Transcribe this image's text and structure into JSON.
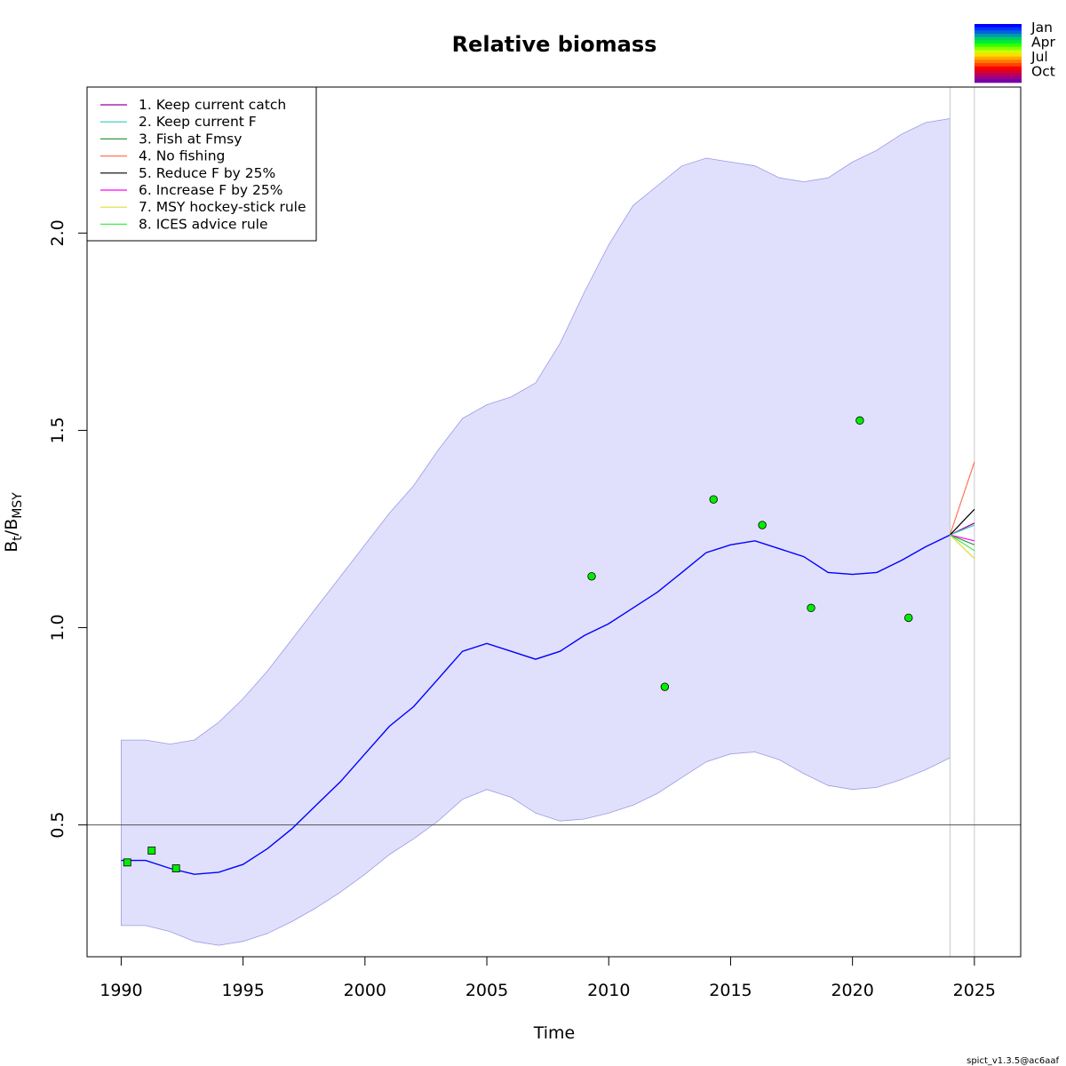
{
  "chart_data": {
    "type": "line",
    "title": "Relative biomass",
    "xlabel": "Time",
    "ylabel_main": "B",
    "ylabel_sub1": "t",
    "ylabel_sep": "/B",
    "ylabel_sub2": "MSY",
    "xlim": [
      1988.6,
      2026.9
    ],
    "ylim": [
      0.166,
      2.37
    ],
    "x_ticks": [
      1990,
      1995,
      2000,
      2005,
      2010,
      2015,
      2020,
      2025
    ],
    "y_ticks": [
      0.5,
      1.0,
      1.5,
      2.0
    ],
    "x_tick_labels": [
      "1990",
      "1995",
      "2000",
      "2005",
      "2010",
      "2015",
      "2020",
      "2025"
    ],
    "y_tick_labels": [
      "0.5",
      "1.0",
      "1.5",
      "2.0"
    ],
    "reference_line_y": 0.5,
    "forecast_lines_x": [
      2024.0,
      2025.0
    ],
    "estimate": {
      "color": "#0000ff",
      "x": [
        1990.0,
        1991.0,
        1992.0,
        1993.0,
        1994.0,
        1995.0,
        1996.0,
        1997.0,
        1998.0,
        1999.0,
        2000.0,
        2001.0,
        2002.0,
        2003.0,
        2004.0,
        2005.0,
        2006.0,
        2007.0,
        2008.0,
        2009.0,
        2010.0,
        2011.0,
        2012.0,
        2013.0,
        2014.0,
        2015.0,
        2016.0,
        2017.0,
        2018.0,
        2019.0,
        2020.0,
        2021.0,
        2022.0,
        2023.0,
        2024.0
      ],
      "y": [
        0.41,
        0.41,
        0.39,
        0.375,
        0.38,
        0.4,
        0.44,
        0.49,
        0.55,
        0.61,
        0.68,
        0.75,
        0.8,
        0.87,
        0.94,
        0.96,
        0.94,
        0.92,
        0.94,
        0.98,
        1.01,
        1.05,
        1.09,
        1.14,
        1.19,
        1.21,
        1.22,
        1.2,
        1.18,
        1.14,
        1.135,
        1.14,
        1.17,
        1.205,
        1.235
      ]
    },
    "ci_band": {
      "color": "#e0e0fc",
      "x": [
        1990.0,
        1991.0,
        1992.0,
        1993.0,
        1994.0,
        1995.0,
        1996.0,
        1997.0,
        1998.0,
        1999.0,
        2000.0,
        2001.0,
        2002.0,
        2003.0,
        2004.0,
        2005.0,
        2006.0,
        2007.0,
        2008.0,
        2009.0,
        2010.0,
        2011.0,
        2012.0,
        2013.0,
        2014.0,
        2015.0,
        2016.0,
        2017.0,
        2018.0,
        2019.0,
        2020.0,
        2021.0,
        2022.0,
        2023.0,
        2024.0
      ],
      "lower": [
        0.245,
        0.245,
        0.23,
        0.205,
        0.195,
        0.205,
        0.225,
        0.255,
        0.29,
        0.33,
        0.375,
        0.425,
        0.465,
        0.51,
        0.565,
        0.59,
        0.57,
        0.53,
        0.51,
        0.515,
        0.53,
        0.55,
        0.58,
        0.62,
        0.66,
        0.68,
        0.685,
        0.665,
        0.63,
        0.6,
        0.59,
        0.595,
        0.615,
        0.64,
        0.67
      ],
      "upper": [
        0.715,
        0.715,
        0.705,
        0.715,
        0.76,
        0.82,
        0.89,
        0.97,
        1.05,
        1.13,
        1.21,
        1.29,
        1.36,
        1.45,
        1.53,
        1.565,
        1.585,
        1.62,
        1.72,
        1.85,
        1.97,
        2.07,
        2.12,
        2.17,
        2.19,
        2.18,
        2.17,
        2.14,
        2.13,
        2.14,
        2.18,
        2.21,
        2.25,
        2.28,
        2.29
      ]
    },
    "observations": {
      "fill": "#00ee00",
      "squares": [
        {
          "x": 1990.25,
          "y": 0.405
        },
        {
          "x": 1991.25,
          "y": 0.435
        },
        {
          "x": 1992.25,
          "y": 0.39
        }
      ],
      "circles": [
        {
          "x": 2009.3,
          "y": 1.13
        },
        {
          "x": 2012.3,
          "y": 0.85
        },
        {
          "x": 2014.3,
          "y": 1.325
        },
        {
          "x": 2016.3,
          "y": 1.26
        },
        {
          "x": 2018.3,
          "y": 1.05
        },
        {
          "x": 2020.3,
          "y": 1.525
        },
        {
          "x": 2022.3,
          "y": 1.025
        }
      ]
    },
    "scenarios": [
      {
        "name": "1. Keep current catch",
        "color": "#9b009b",
        "x": [
          2024.0,
          2025.0
        ],
        "y": [
          1.235,
          1.265
        ]
      },
      {
        "name": "2. Keep current F",
        "color": "#33ccbb",
        "x": [
          2024.0,
          2025.0
        ],
        "y": [
          1.235,
          1.26
        ]
      },
      {
        "name": "3. Fish at Fmsy",
        "color": "#339944",
        "x": [
          2024.0,
          2025.0
        ],
        "y": [
          1.235,
          1.21
        ]
      },
      {
        "name": "4. No fishing",
        "color": "#ff7755",
        "x": [
          2024.0,
          2025.0
        ],
        "y": [
          1.235,
          1.42
        ]
      },
      {
        "name": "5. Reduce F by 25%",
        "color": "#000000",
        "x": [
          2024.0,
          2025.0
        ],
        "y": [
          1.235,
          1.3
        ]
      },
      {
        "name": "6. Increase F by 25%",
        "color": "#ff00ff",
        "x": [
          2024.0,
          2025.0
        ],
        "y": [
          1.235,
          1.22
        ]
      },
      {
        "name": "7. MSY hockey-stick rule",
        "color": "#dddd33",
        "x": [
          2024.0,
          2025.0
        ],
        "y": [
          1.235,
          1.175
        ]
      },
      {
        "name": "8. ICES advice rule",
        "color": "#44ee44",
        "x": [
          2024.0,
          2025.0
        ],
        "y": [
          1.235,
          1.195
        ]
      }
    ],
    "legend_placement": "top-left",
    "season_legend": {
      "labels": [
        "Jan",
        "Apr",
        "Jul",
        "Oct"
      ],
      "colors": [
        "#0000ff",
        "#0033ff",
        "#0066dd",
        "#0099aa",
        "#00cc66",
        "#00ee33",
        "#33ff00",
        "#88ff00",
        "#ccff00",
        "#ffdd00",
        "#ffaa00",
        "#ff7700",
        "#ff4400",
        "#ff0000",
        "#dd0022",
        "#bb0055",
        "#990088",
        "#7700aa"
      ]
    }
  },
  "footer": {
    "version": "spict_v1.3.5@ac6aaf"
  }
}
